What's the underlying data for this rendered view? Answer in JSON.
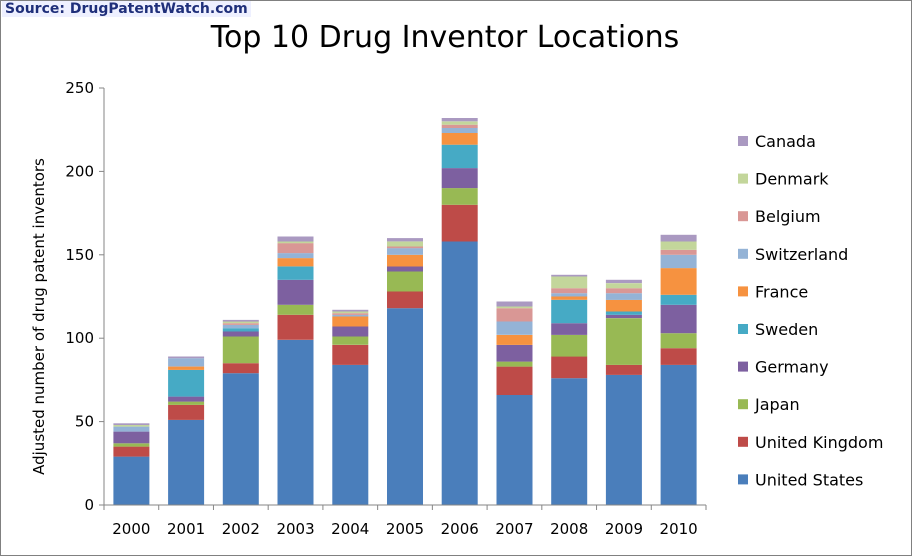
{
  "source": "Source: DrugPatentWatch.com",
  "chart_data": {
    "type": "bar",
    "stacked": true,
    "title": "Top 10 Drug Inventor Locations",
    "ylabel": "Adjusted number of drug patent inventors",
    "ylim": [
      0,
      250
    ],
    "yticks": [
      0,
      50,
      100,
      150,
      200,
      250
    ],
    "grid": false,
    "legend_position": "right",
    "categories": [
      "2000",
      "2001",
      "2002",
      "2003",
      "2004",
      "2005",
      "2006",
      "2007",
      "2008",
      "2009",
      "2010"
    ],
    "series": [
      {
        "name": "United States",
        "color": "#4a7ebb",
        "values": [
          29,
          51,
          79,
          99,
          84,
          118,
          158,
          66,
          76,
          78,
          84
        ]
      },
      {
        "name": "United Kingdom",
        "color": "#be4b48",
        "values": [
          6,
          9,
          6,
          15,
          12,
          10,
          22,
          17,
          13,
          6,
          10
        ]
      },
      {
        "name": "Japan",
        "color": "#98b954",
        "values": [
          2,
          2,
          16,
          6,
          5,
          12,
          10,
          3,
          13,
          28,
          9
        ]
      },
      {
        "name": "Germany",
        "color": "#7d60a0",
        "values": [
          7,
          3,
          3,
          15,
          6,
          3,
          12,
          10,
          7,
          2,
          17
        ]
      },
      {
        "name": "Sweden",
        "color": "#46aac5",
        "values": [
          0,
          16,
          2,
          8,
          0,
          0,
          14,
          0,
          14,
          2,
          6
        ]
      },
      {
        "name": "France",
        "color": "#f69240",
        "values": [
          0,
          2,
          0,
          5,
          6,
          7,
          7,
          6,
          2,
          7,
          16
        ]
      },
      {
        "name": "Switzerland",
        "color": "#94b3d6",
        "values": [
          3,
          5,
          2,
          3,
          1,
          4,
          3,
          8,
          2,
          4,
          8
        ]
      },
      {
        "name": "Belgium",
        "color": "#d99795",
        "values": [
          0,
          0,
          1,
          6,
          1,
          1,
          2,
          8,
          3,
          3,
          3
        ]
      },
      {
        "name": "Denmark",
        "color": "#c3d69b",
        "values": [
          1,
          0,
          1,
          1,
          1,
          3,
          2,
          1,
          7,
          3,
          5
        ]
      },
      {
        "name": "Canada",
        "color": "#aa99c1",
        "values": [
          1,
          1,
          1,
          3,
          1,
          2,
          2,
          3,
          1,
          2,
          4
        ]
      }
    ]
  }
}
